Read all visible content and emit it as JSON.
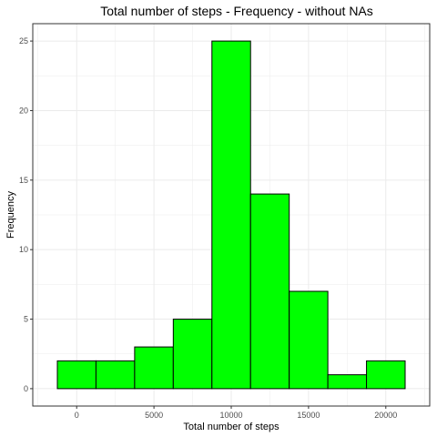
{
  "chart_data": {
    "type": "bar",
    "title": "Total number of steps - Frequency - without NAs",
    "xlabel": "Total number of steps",
    "ylabel": "Frequency",
    "bins": [
      {
        "start": -1250,
        "end": 1250,
        "count": 2
      },
      {
        "start": 1250,
        "end": 3750,
        "count": 2
      },
      {
        "start": 3750,
        "end": 6250,
        "count": 3
      },
      {
        "start": 6250,
        "end": 8750,
        "count": 5
      },
      {
        "start": 8750,
        "end": 11250,
        "count": 25
      },
      {
        "start": 11250,
        "end": 13750,
        "count": 14
      },
      {
        "start": 13750,
        "end": 16250,
        "count": 7
      },
      {
        "start": 16250,
        "end": 18750,
        "count": 1
      },
      {
        "start": 18750,
        "end": 21250,
        "count": 2
      }
    ],
    "xticks": [
      0,
      5000,
      10000,
      15000,
      20000
    ],
    "yticks": [
      0,
      5,
      10,
      15,
      20,
      25
    ],
    "xlim": [
      -2840,
      22840
    ],
    "ylim": [
      -1.25,
      26.25
    ],
    "grid": true,
    "colors": {
      "bar_fill": "#00ff00",
      "bar_stroke": "#000000",
      "grid": "#ebebeb",
      "panel_border": "#333333"
    }
  }
}
